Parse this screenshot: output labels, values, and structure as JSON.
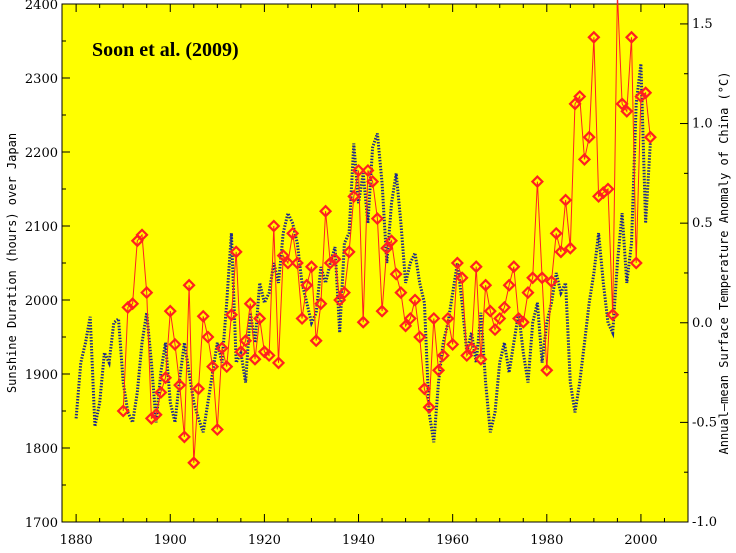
{
  "chart_data": {
    "type": "line",
    "title": "Soon et al. (2009)",
    "xlabel": "",
    "ylabel": "Sunshine Duration (hours) over Japan",
    "ylabel_right": "Annual–mean Surface Temperature Anomaly of China (°C)",
    "xlim": [
      1877,
      2010
    ],
    "ylim": [
      1700,
      2400
    ],
    "ylim_right": [
      -1.0,
      1.6
    ],
    "x_ticks": [
      "1880",
      "1900",
      "1920",
      "1940",
      "1960",
      "1980",
      "2000"
    ],
    "y_ticks": [
      "1700",
      "1800",
      "1900",
      "2000",
      "2100",
      "2200",
      "2300",
      "2400"
    ],
    "y_ticks_right": [
      "-1.0",
      "-0.5",
      "0.0",
      "0.5",
      "1.0",
      "1.5"
    ],
    "background_color": "#ffff00",
    "grid": false,
    "series": [
      {
        "axis": "right",
        "color": "#1e2a8c",
        "style": "dotted",
        "x": [
          1880,
          1881,
          1882,
          1883,
          1884,
          1885,
          1886,
          1887,
          1888,
          1889,
          1890,
          1891,
          1892,
          1893,
          1894,
          1895,
          1896,
          1897,
          1898,
          1899,
          1900,
          1901,
          1902,
          1903,
          1904,
          1905,
          1906,
          1907,
          1908,
          1909,
          1910,
          1911,
          1912,
          1913,
          1914,
          1915,
          1916,
          1917,
          1918,
          1919,
          1920,
          1921,
          1922,
          1923,
          1924,
          1925,
          1926,
          1927,
          1928,
          1929,
          1930,
          1931,
          1932,
          1933,
          1934,
          1935,
          1936,
          1937,
          1938,
          1939,
          1940,
          1941,
          1942,
          1943,
          1944,
          1945,
          1946,
          1947,
          1948,
          1949,
          1950,
          1951,
          1952,
          1953,
          1954,
          1955,
          1956,
          1957,
          1958,
          1959,
          1960,
          1961,
          1962,
          1963,
          1964,
          1965,
          1966,
          1967,
          1968,
          1969,
          1970,
          1971,
          1972,
          1973,
          1974,
          1975,
          1976,
          1977,
          1978,
          1979,
          1980,
          1981,
          1982,
          1983,
          1984,
          1985,
          1986,
          1987,
          1988,
          1989,
          1990,
          1991,
          1992,
          1993,
          1994,
          1995,
          1996,
          1997,
          1998,
          1999,
          2000,
          2001,
          2002
        ],
        "y": [
          -0.48,
          -0.2,
          -0.1,
          0.03,
          -0.52,
          -0.4,
          -0.15,
          -0.2,
          0.0,
          0.02,
          -0.3,
          -0.45,
          -0.5,
          -0.35,
          -0.1,
          0.05,
          -0.2,
          -0.5,
          -0.25,
          -0.1,
          -0.4,
          -0.5,
          -0.28,
          -0.1,
          -0.25,
          -0.4,
          -0.48,
          -0.55,
          -0.4,
          -0.25,
          -0.1,
          -0.2,
          0.1,
          0.45,
          -0.2,
          -0.15,
          -0.3,
          0.05,
          -0.1,
          0.2,
          0.1,
          0.15,
          0.3,
          0.2,
          0.45,
          0.55,
          0.5,
          0.4,
          0.2,
          0.1,
          0.0,
          0.05,
          0.28,
          0.2,
          0.3,
          0.38,
          -0.05,
          0.4,
          0.45,
          0.9,
          0.6,
          0.75,
          0.5,
          0.88,
          0.95,
          0.7,
          0.3,
          0.6,
          0.75,
          0.5,
          0.2,
          0.3,
          0.35,
          0.2,
          0.1,
          -0.45,
          -0.6,
          -0.3,
          -0.1,
          0.0,
          0.15,
          0.3,
          0.1,
          -0.15,
          -0.05,
          -0.2,
          0.05,
          -0.3,
          -0.55,
          -0.45,
          -0.2,
          -0.1,
          -0.25,
          -0.1,
          0.05,
          -0.15,
          -0.3,
          0.0,
          0.1,
          -0.2,
          0.0,
          0.1,
          0.25,
          0.15,
          0.2,
          -0.3,
          -0.45,
          -0.3,
          -0.1,
          0.1,
          0.25,
          0.45,
          0.2,
          0.0,
          -0.05,
          0.3,
          0.55,
          0.2,
          0.4,
          1.1,
          1.3,
          0.5,
          0.9
        ]
      },
      {
        "axis": "left",
        "color": "#ff2020",
        "style": "solid-diamond",
        "x": [
          1890,
          1891,
          1892,
          1893,
          1894,
          1895,
          1896,
          1897,
          1898,
          1899,
          1900,
          1901,
          1902,
          1903,
          1904,
          1905,
          1906,
          1907,
          1908,
          1909,
          1910,
          1911,
          1912,
          1913,
          1914,
          1915,
          1916,
          1917,
          1918,
          1919,
          1920,
          1921,
          1922,
          1923,
          1924,
          1925,
          1926,
          1927,
          1928,
          1929,
          1930,
          1931,
          1932,
          1933,
          1934,
          1935,
          1936,
          1937,
          1938,
          1939,
          1940,
          1941,
          1942,
          1943,
          1944,
          1945,
          1946,
          1947,
          1948,
          1949,
          1950,
          1951,
          1952,
          1953,
          1954,
          1955,
          1956,
          1957,
          1958,
          1959,
          1960,
          1961,
          1962,
          1963,
          1964,
          1965,
          1966,
          1967,
          1968,
          1969,
          1970,
          1971,
          1972,
          1973,
          1974,
          1975,
          1976,
          1977,
          1978,
          1979,
          1980,
          1981,
          1982,
          1983,
          1984,
          1985,
          1986,
          1987,
          1988,
          1989,
          1990,
          1991,
          1992,
          1993,
          1994,
          1995,
          1996,
          1997,
          1998,
          1999,
          2000,
          2001,
          2002
        ],
        "y": [
          1850,
          1990,
          1995,
          2080,
          2088,
          2010,
          1840,
          1845,
          1875,
          1895,
          1985,
          1940,
          1885,
          1815,
          2020,
          1780,
          1880,
          1978,
          1950,
          1910,
          1825,
          1935,
          1910,
          1980,
          2065,
          1930,
          1945,
          1995,
          1920,
          1975,
          1930,
          1925,
          2100,
          1915,
          2060,
          2050,
          2090,
          2050,
          1975,
          2020,
          2045,
          1945,
          1995,
          2120,
          2050,
          2055,
          2000,
          2010,
          2065,
          2140,
          2175,
          1970,
          2175,
          2160,
          2110,
          1985,
          2070,
          2080,
          2035,
          2010,
          1965,
          1975,
          2000,
          1950,
          1880,
          1855,
          1975,
          1905,
          1925,
          1975,
          1940,
          2050,
          2030,
          1925,
          1935,
          2045,
          1920,
          2020,
          1985,
          1960,
          1975,
          1990,
          2020,
          2045,
          1975,
          1970,
          2010,
          2030,
          2160,
          2030,
          1905,
          2025,
          2090,
          2065,
          2135,
          2070,
          2265,
          2275,
          2190,
          2220,
          2355,
          2140,
          2145,
          2150,
          1980,
          2415,
          2265,
          2255,
          2355,
          2050,
          2275,
          2280,
          2220
        ]
      }
    ]
  }
}
